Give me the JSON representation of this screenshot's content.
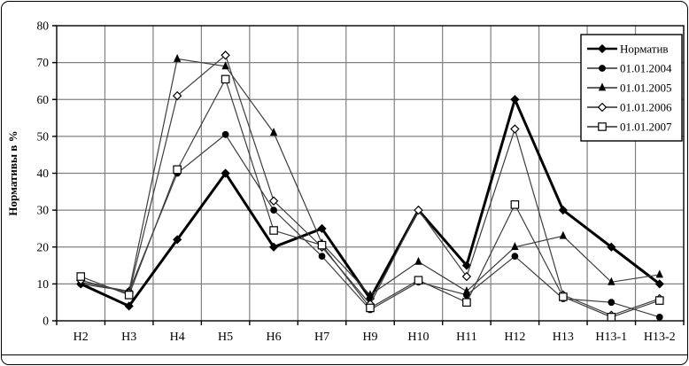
{
  "figure": {
    "ylabel": "Нормативы в %"
  },
  "colors": {
    "line": "#000000",
    "thin_line": "#3d3d3d",
    "grid": "#808080",
    "frame": "#000000",
    "background": "#ffffff",
    "open_marker_fill": "#ffffff"
  },
  "chart_data": {
    "type": "line",
    "title": "",
    "xlabel": "",
    "ylabel": "Нормативы в %",
    "ylim": [
      0,
      80
    ],
    "ytick_step": 10,
    "yticks": [
      0,
      10,
      20,
      30,
      40,
      50,
      60,
      70,
      80
    ],
    "grid": true,
    "legend_position": "top-right",
    "categories": [
      "Н2",
      "Н3",
      "Н4",
      "Н5",
      "Н6",
      "Н7",
      "Н9",
      "Н10",
      "Н11",
      "Н12",
      "Н13",
      "Н13-1",
      "Н13-2"
    ],
    "series": [
      {
        "name": "Норматив",
        "marker": "diamond-filled",
        "line_width": 3,
        "values": [
          10,
          4,
          22,
          40,
          20,
          25,
          6,
          30,
          15,
          60,
          30,
          20,
          10
        ]
      },
      {
        "name": "01.01.2004",
        "marker": "circle-filled",
        "line_width": 1.2,
        "values": [
          10,
          8,
          40,
          50.5,
          30,
          17.5,
          3,
          10.5,
          7,
          17.5,
          6,
          5,
          1
        ]
      },
      {
        "name": "01.01.2005",
        "marker": "triangle-filled",
        "line_width": 1.2,
        "values": [
          10.5,
          8,
          71,
          69,
          51,
          21,
          7,
          16,
          8,
          20,
          23,
          10.5,
          12.5
        ]
      },
      {
        "name": "01.01.2006",
        "marker": "diamond-open",
        "line_width": 1.2,
        "values": [
          11,
          7.5,
          61,
          72,
          32.5,
          20,
          4.5,
          30,
          12,
          52,
          7,
          1.5,
          6
        ]
      },
      {
        "name": "01.01.2007",
        "marker": "square-open",
        "line_width": 1.2,
        "values": [
          12,
          7,
          41,
          65.5,
          24.5,
          20.5,
          3.5,
          11,
          5,
          31.5,
          6.5,
          1,
          5.5
        ]
      }
    ]
  }
}
